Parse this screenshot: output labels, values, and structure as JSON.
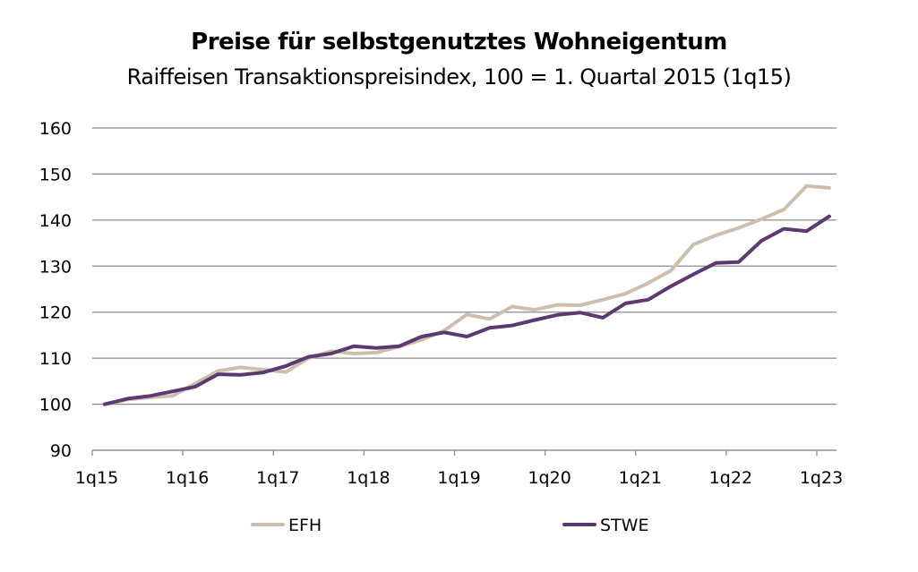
{
  "chart_data": {
    "type": "line",
    "title": "Preise für selbstgenutztes Wohneigentum",
    "subtitle": "Raiffeisen Transaktionspreisindex, 100 = 1. Quartal 2015 (1q15)",
    "xlabel": "",
    "ylabel": "",
    "ylim": [
      90,
      160
    ],
    "yticks": [
      "90",
      "100",
      "110",
      "120",
      "130",
      "140",
      "150",
      "160"
    ],
    "xticks": [
      "1q15",
      "1q16",
      "1q17",
      "1q18",
      "1q19",
      "1q20",
      "1q21",
      "1q22",
      "1q23"
    ],
    "grid": true,
    "legend_position": "bottom",
    "x": [
      "1q15",
      "2q15",
      "3q15",
      "4q15",
      "1q16",
      "2q16",
      "3q16",
      "4q16",
      "1q17",
      "2q17",
      "3q17",
      "4q17",
      "1q18",
      "2q18",
      "3q18",
      "4q18",
      "1q19",
      "2q19",
      "3q19",
      "4q19",
      "1q20",
      "2q20",
      "3q20",
      "4q20",
      "1q21",
      "2q21",
      "3q21",
      "4q21",
      "1q22",
      "2q22",
      "3q22",
      "4q22",
      "1q23"
    ],
    "series": [
      {
        "name": "EFH",
        "color": "#cdbfad",
        "values": [
          100,
          101,
          101.5,
          101.8,
          104.5,
          107.2,
          108,
          107.5,
          107,
          110,
          111.5,
          111,
          111.2,
          112.5,
          114,
          116,
          119.5,
          118.5,
          121.2,
          120.5,
          121.6,
          121.5,
          122.7,
          124,
          126.3,
          129,
          134.7,
          136.7,
          138.3,
          140.2,
          142.3,
          147.4,
          147
        ]
      },
      {
        "name": "STWE",
        "color": "#5b3a72",
        "values": [
          100,
          101.2,
          101.8,
          102.8,
          103.8,
          106.5,
          106.4,
          106.9,
          108.3,
          110.3,
          111,
          112.6,
          112.2,
          112.6,
          114.7,
          115.6,
          114.7,
          116.6,
          117.1,
          118.3,
          119.4,
          119.9,
          118.8,
          121.9,
          122.7,
          125.6,
          128.2,
          130.7,
          130.9,
          135.5,
          138.1,
          137.6,
          140.8
        ]
      }
    ]
  }
}
